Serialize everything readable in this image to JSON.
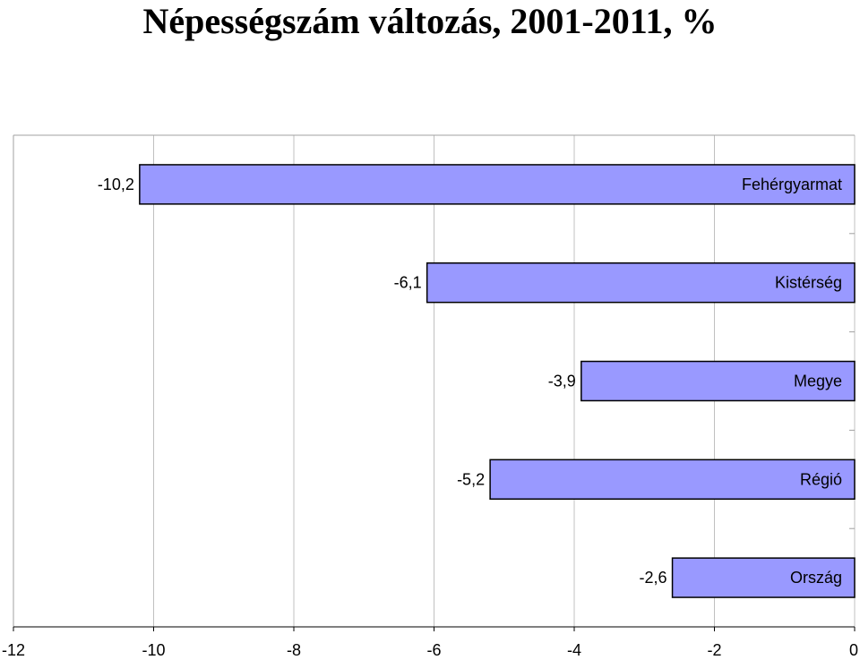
{
  "chart_data": {
    "type": "bar",
    "orientation": "horizontal",
    "title": "Népességszám változás, 2001-2011, %",
    "xlabel": "",
    "ylabel": "",
    "categories": [
      "Fehérgyarmat",
      "Kistérség",
      "Megye",
      "Régió",
      "Ország"
    ],
    "values": [
      -10.2,
      -6.1,
      -3.9,
      -5.2,
      -2.6
    ],
    "data_labels": [
      "-10,2",
      "-6,1",
      "-3,9",
      "-5,2",
      "-2,6"
    ],
    "xlim": [
      -12,
      0
    ],
    "x_ticks": [
      -12,
      -10,
      -8,
      -6,
      -4,
      -2,
      0
    ],
    "x_tick_labels": [
      "-12",
      "-10",
      "-8",
      "-6",
      "-4",
      "-2",
      "0"
    ],
    "grid": "vertical",
    "legend": "none",
    "bar_color": "#9999ff",
    "bar_edge_color": "#000000",
    "grid_color": "#c0c0c0"
  }
}
